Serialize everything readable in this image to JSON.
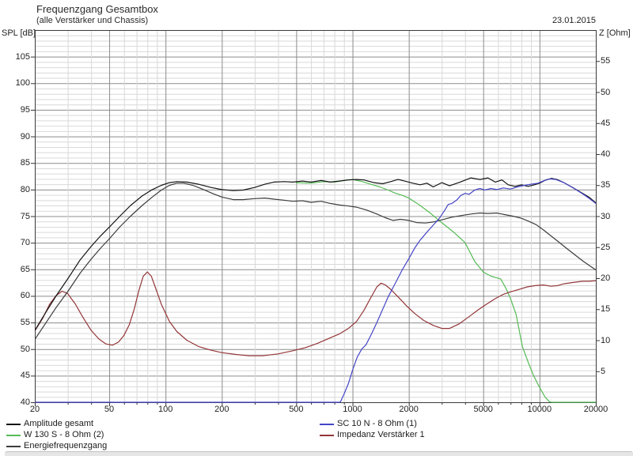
{
  "header": {
    "title": "Frequenzgang Gesamtbox",
    "subtitle": "(alle Verstärker und Chassis)",
    "date": "23.01.2015",
    "left_axis_label": "SPL [dB]",
    "right_axis_label": "Z [Ohm]"
  },
  "colors": {
    "background": "#ffffff",
    "border": "#3a3a3a",
    "grid_major": "#8c8c8c",
    "grid_minor": "#d9d9d9",
    "tick": "#333333",
    "text": "#222222"
  },
  "legend": {
    "column1": [
      "amplitude",
      "w130s",
      "energie"
    ],
    "column2": [
      "sc10n",
      "impedanz"
    ]
  },
  "chart_data": {
    "type": "line",
    "title": "Frequenzgang Gesamtbox",
    "subtitle": "(alle Verstärker und Chassis)",
    "date": "23.01.2015",
    "x_axis": {
      "scale": "log",
      "unit": "Hz",
      "min": 20,
      "max": 20000,
      "major_ticks": [
        20,
        50,
        100,
        200,
        500,
        1000,
        2000,
        5000,
        10000,
        20000
      ],
      "minor_ticks": [
        30,
        40,
        60,
        70,
        80,
        90,
        300,
        400,
        600,
        700,
        800,
        900,
        3000,
        4000,
        6000,
        7000,
        8000,
        9000
      ]
    },
    "y_axis_left": {
      "label": "SPL [dB]",
      "min": 40,
      "max": 110,
      "major_step": 5,
      "minor_step": 1,
      "tick_labels": [
        105,
        100,
        95,
        90,
        85,
        80,
        75,
        70,
        65,
        60,
        55,
        50,
        45,
        40
      ]
    },
    "y_axis_right": {
      "label": "Z [Ohm]",
      "min": 0,
      "max": 60,
      "major_step": 5,
      "tick_labels": [
        55,
        50,
        45,
        40,
        35,
        30,
        25,
        20,
        15,
        10,
        5
      ]
    },
    "grid": "minor 1 dB, major 5 dB horizontal; log minor/major vertical",
    "legend_position": "bottom",
    "series": [
      {
        "id": "amplitude",
        "name": "Amplitude gesamt",
        "axis": "left",
        "color": "#141414",
        "points": [
          [
            20,
            53.5
          ],
          [
            23,
            57.0
          ],
          [
            26,
            60.0
          ],
          [
            30,
            63.2
          ],
          [
            35,
            66.8
          ],
          [
            40,
            69.3
          ],
          [
            45,
            71.3
          ],
          [
            50,
            72.9
          ],
          [
            57,
            75.0
          ],
          [
            65,
            77.0
          ],
          [
            75,
            78.8
          ],
          [
            85,
            80.0
          ],
          [
            95,
            80.8
          ],
          [
            105,
            81.3
          ],
          [
            115,
            81.5
          ],
          [
            130,
            81.4
          ],
          [
            150,
            81.0
          ],
          [
            175,
            80.4
          ],
          [
            200,
            80.0
          ],
          [
            230,
            79.8
          ],
          [
            260,
            79.9
          ],
          [
            300,
            80.4
          ],
          [
            340,
            81.0
          ],
          [
            380,
            81.4
          ],
          [
            430,
            81.5
          ],
          [
            480,
            81.4
          ],
          [
            540,
            81.6
          ],
          [
            600,
            81.4
          ],
          [
            680,
            81.7
          ],
          [
            760,
            81.4
          ],
          [
            850,
            81.6
          ],
          [
            950,
            81.8
          ],
          [
            1050,
            81.9
          ],
          [
            1150,
            81.8
          ],
          [
            1300,
            81.3
          ],
          [
            1450,
            81.1
          ],
          [
            1600,
            81.5
          ],
          [
            1750,
            81.9
          ],
          [
            1900,
            81.6
          ],
          [
            2100,
            81.2
          ],
          [
            2300,
            80.9
          ],
          [
            2500,
            81.2
          ],
          [
            2700,
            80.5
          ],
          [
            3000,
            81.3
          ],
          [
            3300,
            80.7
          ],
          [
            3700,
            81.3
          ],
          [
            4300,
            82.2
          ],
          [
            4800,
            81.9
          ],
          [
            5300,
            82.2
          ],
          [
            5800,
            81.4
          ],
          [
            6300,
            81.8
          ],
          [
            6800,
            80.9
          ],
          [
            7400,
            80.6
          ],
          [
            8000,
            80.9
          ],
          [
            8700,
            80.6
          ],
          [
            9400,
            80.9
          ],
          [
            10000,
            81.2
          ],
          [
            10800,
            81.8
          ],
          [
            11600,
            82.1
          ],
          [
            12400,
            81.9
          ],
          [
            13500,
            81.3
          ],
          [
            15000,
            80.4
          ],
          [
            17000,
            79.3
          ],
          [
            18500,
            78.5
          ],
          [
            20000,
            77.5
          ]
        ]
      },
      {
        "id": "energie",
        "name": "Energiefrequenzgang",
        "axis": "left",
        "color": "#3c3c3c",
        "points": [
          [
            20,
            51.8
          ],
          [
            23,
            55.0
          ],
          [
            26,
            57.8
          ],
          [
            30,
            60.8
          ],
          [
            35,
            64.3
          ],
          [
            40,
            66.9
          ],
          [
            45,
            69.0
          ],
          [
            50,
            70.7
          ],
          [
            57,
            73.0
          ],
          [
            65,
            75.0
          ],
          [
            75,
            77.0
          ],
          [
            85,
            78.6
          ],
          [
            95,
            79.9
          ],
          [
            105,
            80.8
          ],
          [
            115,
            81.2
          ],
          [
            125,
            81.2
          ],
          [
            140,
            80.8
          ],
          [
            160,
            80.0
          ],
          [
            180,
            79.2
          ],
          [
            200,
            78.6
          ],
          [
            230,
            78.1
          ],
          [
            260,
            78.1
          ],
          [
            300,
            78.3
          ],
          [
            340,
            78.4
          ],
          [
            380,
            78.2
          ],
          [
            430,
            78.0
          ],
          [
            480,
            77.8
          ],
          [
            540,
            77.9
          ],
          [
            600,
            77.6
          ],
          [
            680,
            77.8
          ],
          [
            760,
            77.4
          ],
          [
            850,
            77.1
          ],
          [
            950,
            76.9
          ],
          [
            1050,
            76.7
          ],
          [
            1200,
            76.1
          ],
          [
            1350,
            75.4
          ],
          [
            1500,
            74.7
          ],
          [
            1650,
            74.2
          ],
          [
            1800,
            74.4
          ],
          [
            2000,
            74.2
          ],
          [
            2200,
            73.8
          ],
          [
            2450,
            73.7
          ],
          [
            2700,
            73.9
          ],
          [
            3000,
            74.3
          ],
          [
            3400,
            74.8
          ],
          [
            3800,
            75.1
          ],
          [
            4300,
            75.4
          ],
          [
            4800,
            75.6
          ],
          [
            5300,
            75.5
          ],
          [
            5900,
            75.6
          ],
          [
            6500,
            75.3
          ],
          [
            7200,
            75.0
          ],
          [
            8000,
            74.6
          ],
          [
            8800,
            74.0
          ],
          [
            9600,
            73.4
          ],
          [
            10500,
            72.4
          ],
          [
            11500,
            71.3
          ],
          [
            12500,
            70.3
          ],
          [
            14000,
            68.9
          ],
          [
            15500,
            67.7
          ],
          [
            17000,
            66.6
          ],
          [
            18500,
            65.7
          ],
          [
            20000,
            64.9
          ]
        ]
      },
      {
        "id": "w130s",
        "name": "W 130 S - 8 Ohm (2)",
        "axis": "left",
        "color": "#55bb55",
        "points": [
          [
            500,
            81.3
          ],
          [
            600,
            81.2
          ],
          [
            700,
            81.5
          ],
          [
            800,
            81.4
          ],
          [
            900,
            81.7
          ],
          [
            1000,
            81.9
          ],
          [
            1100,
            81.6
          ],
          [
            1250,
            81.0
          ],
          [
            1400,
            80.5
          ],
          [
            1550,
            79.9
          ],
          [
            1700,
            79.3
          ],
          [
            1850,
            78.9
          ],
          [
            2000,
            78.4
          ],
          [
            2300,
            77.0
          ],
          [
            2600,
            75.6
          ],
          [
            2900,
            74.2
          ],
          [
            3200,
            73.0
          ],
          [
            3500,
            71.9
          ],
          [
            4000,
            70.0
          ],
          [
            4500,
            66.5
          ],
          [
            5000,
            64.5
          ],
          [
            5500,
            63.7
          ],
          [
            6200,
            63.2
          ],
          [
            6600,
            61.5
          ],
          [
            7000,
            59.5
          ],
          [
            7500,
            56.5
          ],
          [
            8100,
            50.5
          ],
          [
            8700,
            47.5
          ],
          [
            9300,
            45.0
          ],
          [
            10000,
            42.8
          ],
          [
            10700,
            41.0
          ],
          [
            11300,
            40.1
          ],
          [
            11600,
            40.0
          ],
          [
            20000,
            40.0
          ]
        ]
      },
      {
        "id": "sc10n",
        "name": "SC 10 N - 8 Ohm (1)",
        "axis": "left",
        "color": "#4545c8",
        "points": [
          [
            20,
            40.0
          ],
          [
            860,
            40.0
          ],
          [
            900,
            41.5
          ],
          [
            950,
            43.5
          ],
          [
            1000,
            46.0
          ],
          [
            1060,
            48.5
          ],
          [
            1120,
            50.0
          ],
          [
            1180,
            50.8
          ],
          [
            1250,
            52.5
          ],
          [
            1350,
            55.0
          ],
          [
            1450,
            57.5
          ],
          [
            1550,
            59.8
          ],
          [
            1700,
            62.5
          ],
          [
            1850,
            65.0
          ],
          [
            2000,
            67.0
          ],
          [
            2150,
            69.0
          ],
          [
            2300,
            70.5
          ],
          [
            2500,
            72.0
          ],
          [
            2700,
            73.3
          ],
          [
            2900,
            74.5
          ],
          [
            3100,
            76.0
          ],
          [
            3250,
            77.2
          ],
          [
            3400,
            77.4
          ],
          [
            3600,
            78.0
          ],
          [
            3800,
            78.9
          ],
          [
            4000,
            79.3
          ],
          [
            4200,
            79.1
          ],
          [
            4500,
            79.9
          ],
          [
            4800,
            80.2
          ],
          [
            5100,
            79.9
          ],
          [
            5500,
            80.2
          ],
          [
            5900,
            80.0
          ],
          [
            6400,
            80.3
          ],
          [
            7000,
            80.1
          ],
          [
            7600,
            80.5
          ],
          [
            8300,
            80.8
          ],
          [
            9000,
            81.0
          ],
          [
            9800,
            81.2
          ],
          [
            10600,
            81.7
          ],
          [
            11400,
            82.0
          ],
          [
            12200,
            81.9
          ],
          [
            13500,
            81.3
          ],
          [
            15000,
            80.4
          ],
          [
            17000,
            79.2
          ],
          [
            18500,
            78.3
          ],
          [
            20000,
            77.4
          ]
        ]
      },
      {
        "id": "impedanz",
        "name": "Impedanz Verstärker 1",
        "axis": "right",
        "color": "#943638",
        "points": [
          [
            20,
            11.5
          ],
          [
            22,
            13.5
          ],
          [
            24,
            15.8
          ],
          [
            26,
            17.2
          ],
          [
            28,
            17.9
          ],
          [
            30,
            17.5
          ],
          [
            33,
            15.8
          ],
          [
            36,
            13.8
          ],
          [
            40,
            11.6
          ],
          [
            44,
            10.2
          ],
          [
            48,
            9.4
          ],
          [
            52,
            9.2
          ],
          [
            56,
            9.7
          ],
          [
            60,
            10.8
          ],
          [
            64,
            12.5
          ],
          [
            68,
            15.0
          ],
          [
            72,
            18.0
          ],
          [
            76,
            20.3
          ],
          [
            80,
            21.0
          ],
          [
            84,
            20.3
          ],
          [
            88,
            18.6
          ],
          [
            95,
            15.8
          ],
          [
            105,
            13.0
          ],
          [
            115,
            11.4
          ],
          [
            130,
            10.0
          ],
          [
            150,
            9.0
          ],
          [
            175,
            8.4
          ],
          [
            200,
            8.0
          ],
          [
            240,
            7.7
          ],
          [
            280,
            7.5
          ],
          [
            330,
            7.5
          ],
          [
            400,
            7.8
          ],
          [
            480,
            8.3
          ],
          [
            560,
            8.8
          ],
          [
            650,
            9.5
          ],
          [
            750,
            10.3
          ],
          [
            850,
            11.0
          ],
          [
            950,
            11.9
          ],
          [
            1050,
            13.0
          ],
          [
            1150,
            14.8
          ],
          [
            1250,
            16.8
          ],
          [
            1350,
            18.6
          ],
          [
            1420,
            19.2
          ],
          [
            1500,
            18.9
          ],
          [
            1600,
            18.2
          ],
          [
            1750,
            17.0
          ],
          [
            1950,
            15.5
          ],
          [
            2150,
            14.3
          ],
          [
            2400,
            13.2
          ],
          [
            2700,
            12.4
          ],
          [
            3000,
            11.9
          ],
          [
            3300,
            11.9
          ],
          [
            3700,
            12.6
          ],
          [
            4200,
            13.8
          ],
          [
            4700,
            14.9
          ],
          [
            5200,
            15.8
          ],
          [
            5800,
            16.7
          ],
          [
            6400,
            17.4
          ],
          [
            7000,
            17.8
          ],
          [
            7800,
            18.2
          ],
          [
            8600,
            18.6
          ],
          [
            9500,
            18.8
          ],
          [
            10500,
            18.9
          ],
          [
            11500,
            18.7
          ],
          [
            12500,
            18.8
          ],
          [
            13500,
            19.1
          ],
          [
            15000,
            19.3
          ],
          [
            17000,
            19.5
          ],
          [
            18500,
            19.5
          ],
          [
            20000,
            19.6
          ]
        ]
      }
    ]
  }
}
